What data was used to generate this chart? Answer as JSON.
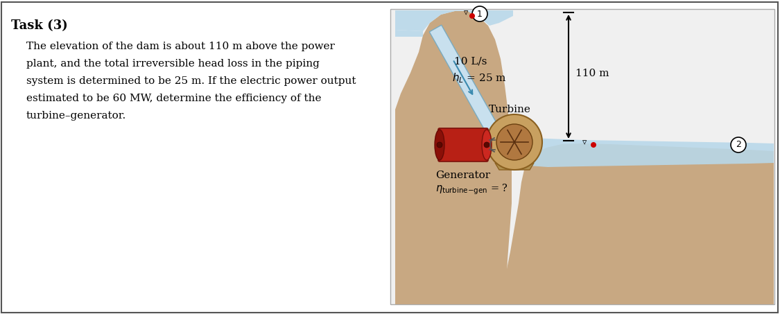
{
  "title": "Task (3)",
  "body_text_lines": [
    "The elevation of the dam is about 110 m above the power",
    "plant, and the total irreversible head loss in the piping",
    "system is determined to be 25 m. If the electric power output",
    "estimated to be 60 MW, determine the efficiency of the",
    "turbine–generator."
  ],
  "label_flow": "10 L/s",
  "label_hl_suffix": " = 25 m",
  "label_height": "110 m",
  "label_turbine": "Turbine",
  "label_generator": "Generator",
  "label_eta_suffix": " = ?",
  "bg_color": "#ffffff",
  "dam_fill": "#c8a882",
  "water_fill": "#b8d8ea",
  "pipe_fill": "#c8e0ee",
  "pipe_edge": "#7aaabf",
  "gen_main": "#b82015",
  "gen_dark": "#8a1008",
  "gen_light": "#cc2820",
  "turbine_tan": "#c8a060",
  "turbine_dark": "#8a6020",
  "turbine_inner": "#b07840",
  "shaft_color": "#999999",
  "red_dot": "#cc0000",
  "black": "#000000"
}
